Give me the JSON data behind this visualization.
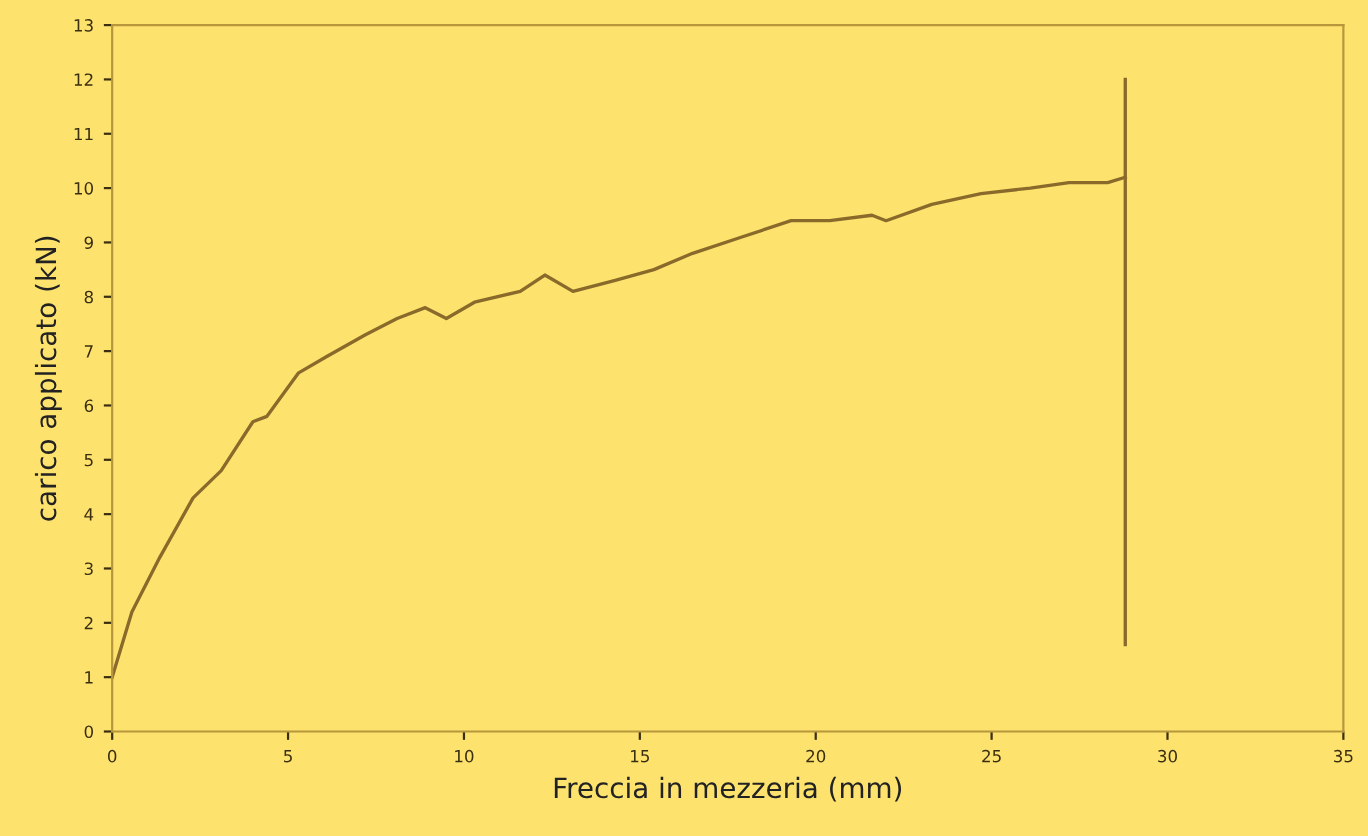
{
  "chart_data": {
    "type": "line",
    "xlabel": "Freccia in mezzeria (mm)",
    "ylabel": "carico applicato (kN)",
    "xlim": [
      0,
      35
    ],
    "xticks": [
      0,
      5,
      10,
      15,
      20,
      25,
      30,
      35
    ],
    "ylim": [
      0,
      13
    ],
    "yticks": [
      0,
      1,
      2,
      3,
      4,
      5,
      6,
      7,
      8,
      9,
      10,
      11,
      12,
      13
    ],
    "grid": false,
    "marker": "none",
    "line_style": "solid",
    "series": [
      {
        "color": "#8a6a2a",
        "x": [
          0,
          0.56,
          1.35,
          2.3,
          3.1,
          4.0,
          4.4,
          5.3,
          6.1,
          7.2,
          8.1,
          8.9,
          9.5,
          10.3,
          11.6,
          12.3,
          13.1,
          14.3,
          15.4,
          16.5,
          17.9,
          19.3,
          20.4,
          21.6,
          22.0,
          23.3,
          24.7,
          26.1,
          27.2,
          28.3,
          28.8
        ],
        "values": [
          1.0,
          2.2,
          3.2,
          4.3,
          4.8,
          5.7,
          5.8,
          6.6,
          6.9,
          7.3,
          7.6,
          7.8,
          7.6,
          7.9,
          8.1,
          8.4,
          8.1,
          8.3,
          8.5,
          8.8,
          9.1,
          9.4,
          9.4,
          9.5,
          9.4,
          9.7,
          9.9,
          10.0,
          10.1,
          10.1,
          10.2
        ]
      },
      {
        "color": "#8a6a2a",
        "x": [
          28.8,
          28.8
        ],
        "values": [
          12.0,
          1.6
        ]
      }
    ]
  }
}
